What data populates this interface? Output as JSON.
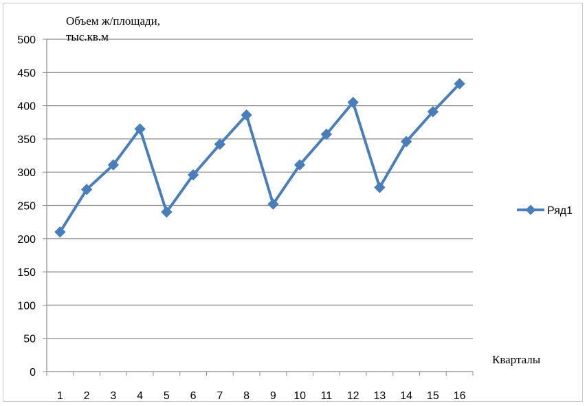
{
  "chart_data": {
    "type": "line",
    "ylabel_line1": "Объем ж/площади,",
    "ylabel_line2": "тыс.кв.м",
    "xlabel": "Кварталы",
    "categories": [
      "1",
      "2",
      "3",
      "4",
      "5",
      "6",
      "7",
      "8",
      "9",
      "10",
      "11",
      "12",
      "13",
      "14",
      "15",
      "16"
    ],
    "yticks": [
      "0",
      "50",
      "100",
      "150",
      "200",
      "250",
      "300",
      "350",
      "400",
      "450",
      "500"
    ],
    "ylim": [
      0,
      500
    ],
    "grid": true,
    "legend_position": "right",
    "series": [
      {
        "name": "Ряд1",
        "color": "#4a7ebb",
        "marker": "diamond",
        "values": [
          210,
          274,
          311,
          365,
          240,
          296,
          342,
          386,
          252,
          311,
          357,
          405,
          277,
          346,
          391,
          433
        ]
      }
    ]
  }
}
